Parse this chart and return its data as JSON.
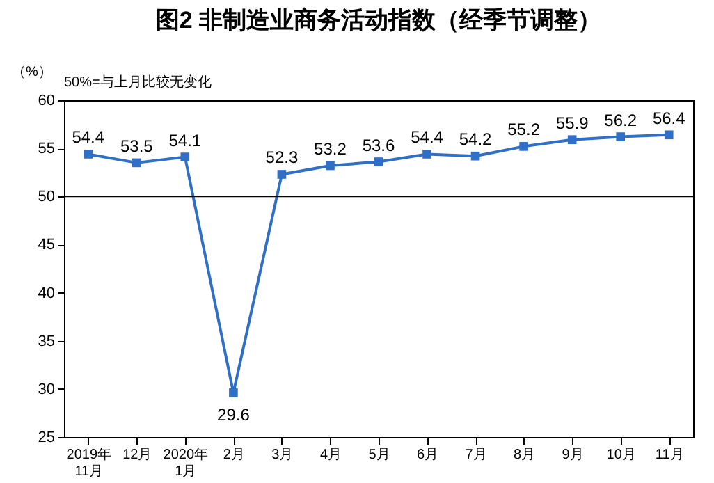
{
  "chart_data": {
    "type": "line",
    "title": "图2  非制造业商务活动指数（经季节调整）",
    "ylabel": "（%）",
    "annotations": [
      "50%=与上月比较无变化"
    ],
    "categories": [
      "2019年\n11月",
      "12月",
      "2020年\n1月",
      "2月",
      "3月",
      "4月",
      "5月",
      "6月",
      "7月",
      "8月",
      "9月",
      "10月",
      "11月"
    ],
    "series": [
      {
        "color": "#2f6fc6",
        "values": [
          54.4,
          53.5,
          54.1,
          29.6,
          52.3,
          53.2,
          53.6,
          54.4,
          54.2,
          55.2,
          55.9,
          56.2,
          56.4
        ]
      }
    ],
    "ylim": [
      25,
      60
    ],
    "yticks": [
      25,
      30,
      35,
      40,
      45,
      50,
      55,
      60
    ],
    "ref_lines": [
      {
        "axis": "y",
        "value": 50,
        "color": "#000000"
      }
    ],
    "data_labels": true,
    "marker": "square",
    "grid": false
  }
}
